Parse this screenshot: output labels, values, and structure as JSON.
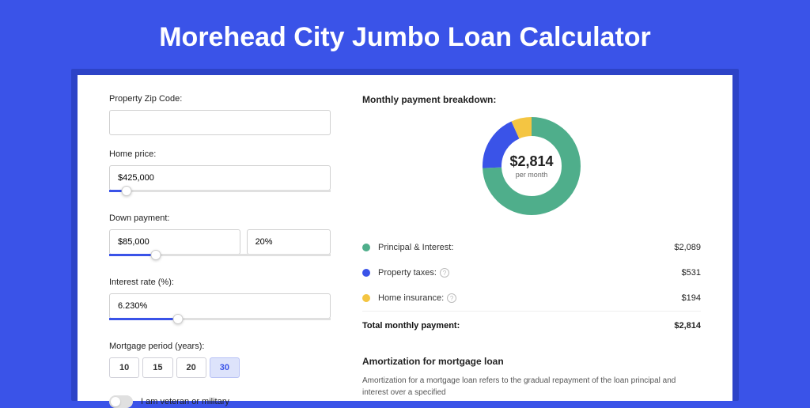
{
  "title": "Morehead City Jumbo Loan Calculator",
  "colors": {
    "page_bg": "#3a53e8",
    "shadow_bg": "#2d43c7",
    "card_bg": "#ffffff",
    "accent": "#3a53e8",
    "principal": "#4fae8b",
    "taxes": "#3a53e8",
    "insurance": "#f4c542",
    "border": "#d0d0d0",
    "text": "#222222"
  },
  "fields": {
    "zip": {
      "label": "Property Zip Code:",
      "value": ""
    },
    "price": {
      "label": "Home price:",
      "value": "$425,000",
      "slider_pct": 8
    },
    "down": {
      "label": "Down payment:",
      "value": "$85,000",
      "pct": "20%",
      "slider_pct": 21
    },
    "rate": {
      "label": "Interest rate (%):",
      "value": "6.230%",
      "slider_pct": 31
    },
    "period": {
      "label": "Mortgage period (years):",
      "options": [
        "10",
        "15",
        "20",
        "30"
      ],
      "active": "30"
    },
    "veteran": {
      "label": "I am veteran or military",
      "checked": false
    }
  },
  "breakdown": {
    "title": "Monthly payment breakdown:",
    "center_amount": "$2,814",
    "center_sub": "per month",
    "items": [
      {
        "label": "Principal & Interest:",
        "value": "$2,089",
        "color": "#4fae8b",
        "pct": 74.2,
        "info": false
      },
      {
        "label": "Property taxes:",
        "value": "$531",
        "color": "#3a53e8",
        "pct": 18.9,
        "info": true
      },
      {
        "label": "Home insurance:",
        "value": "$194",
        "color": "#f4c542",
        "pct": 6.9,
        "info": true
      }
    ],
    "total": {
      "label": "Total monthly payment:",
      "value": "$2,814"
    }
  },
  "amort": {
    "title": "Amortization for mortgage loan",
    "text": "Amortization for a mortgage loan refers to the gradual repayment of the loan principal and interest over a specified"
  },
  "donut": {
    "radius": 50,
    "stroke": 24,
    "circumference": 314.16
  }
}
